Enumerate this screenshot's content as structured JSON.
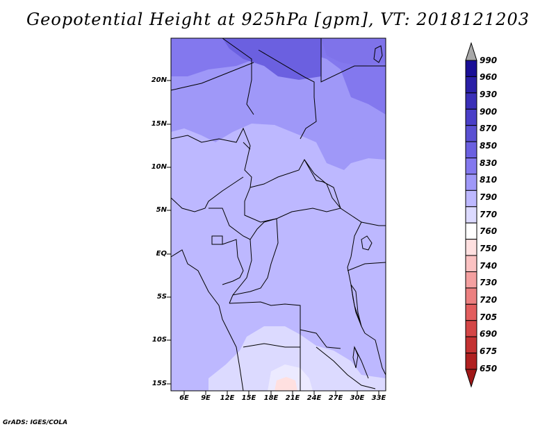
{
  "title": "Geopotential Height at 925hPa [gpm], VT: 2018121203",
  "footer": "GrADS: IGES/COLA",
  "map": {
    "lat_labels": [
      "20N",
      "15N",
      "10N",
      "5N",
      "EQ",
      "5S",
      "10S",
      "15S"
    ],
    "lon_labels": [
      "6E",
      "9E",
      "12E",
      "15E",
      "18E",
      "21E",
      "24E",
      "27E",
      "30E",
      "33E"
    ]
  },
  "colorbar": {
    "levels": [
      "990",
      "960",
      "930",
      "900",
      "870",
      "850",
      "830",
      "810",
      "790",
      "770",
      "760",
      "750",
      "740",
      "730",
      "720",
      "705",
      "690",
      "675",
      "650"
    ],
    "colors": [
      "#1a0f96",
      "#2a1fa6",
      "#3a2fb8",
      "#4a3fc8",
      "#5a50d2",
      "#6b60e0",
      "#8378ee",
      "#9f98f8",
      "#bdb8ff",
      "#dcdaff",
      "#ffffff",
      "#ffe0e0",
      "#fbc2c2",
      "#f4a0a0",
      "#ec8080",
      "#e25e5e",
      "#d44646",
      "#c43232",
      "#b02020"
    ],
    "top_arrow_color": "#a8a8a8",
    "bottom_arrow_color": "#a01818"
  }
}
